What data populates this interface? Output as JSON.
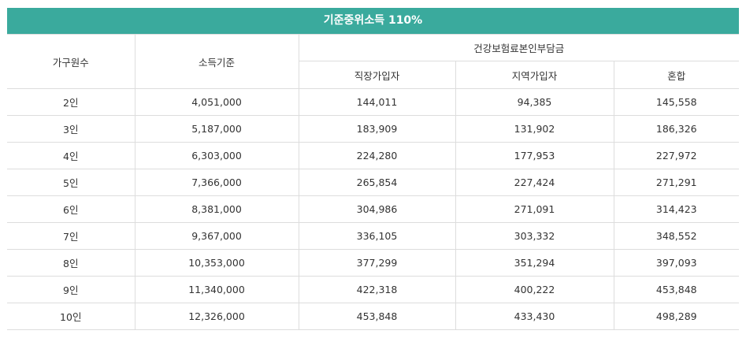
{
  "title": "기준중위소득 110%",
  "colors": {
    "header_bg": "#3aaa9d",
    "border": "#dddddd",
    "text": "#333333"
  },
  "headers": {
    "household": "가구원수",
    "income": "소득기준",
    "premium_group": "건강보험료본인부담금",
    "employee": "직장가입자",
    "regional": "지역가입자",
    "mixed": "혼합"
  },
  "rows": [
    {
      "household": "2인",
      "income": "4,051,000",
      "employee": "144,011",
      "regional": "94,385",
      "mixed": "145,558"
    },
    {
      "household": "3인",
      "income": "5,187,000",
      "employee": "183,909",
      "regional": "131,902",
      "mixed": "186,326"
    },
    {
      "household": "4인",
      "income": "6,303,000",
      "employee": "224,280",
      "regional": "177,953",
      "mixed": "227,972"
    },
    {
      "household": "5인",
      "income": "7,366,000",
      "employee": "265,854",
      "regional": "227,424",
      "mixed": "271,291"
    },
    {
      "household": "6인",
      "income": "8,381,000",
      "employee": "304,986",
      "regional": "271,091",
      "mixed": "314,423"
    },
    {
      "household": "7인",
      "income": "9,367,000",
      "employee": "336,105",
      "regional": "303,332",
      "mixed": "348,552"
    },
    {
      "household": "8인",
      "income": "10,353,000",
      "employee": "377,299",
      "regional": "351,294",
      "mixed": "397,093"
    },
    {
      "household": "9인",
      "income": "11,340,000",
      "employee": "422,318",
      "regional": "400,222",
      "mixed": "453,848"
    },
    {
      "household": "10인",
      "income": "12,326,000",
      "employee": "453,848",
      "regional": "433,430",
      "mixed": "498,289"
    }
  ]
}
